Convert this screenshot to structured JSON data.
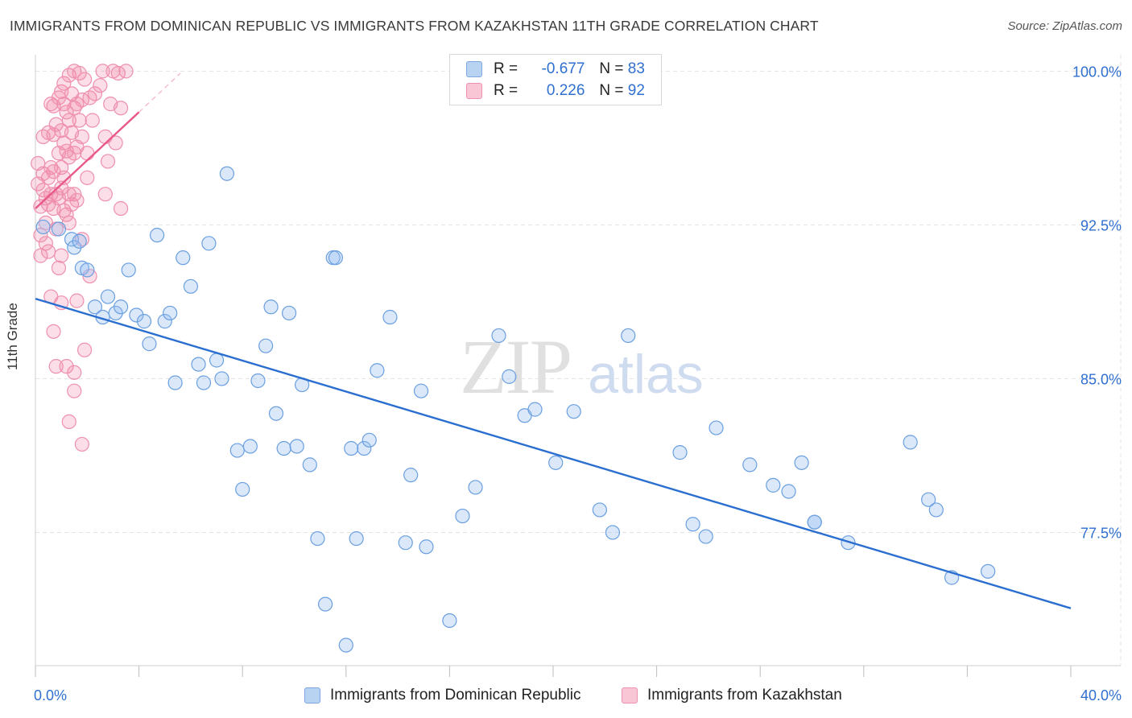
{
  "chart_data": {
    "type": "scatter",
    "title": "IMMIGRANTS FROM DOMINICAN REPUBLIC VS IMMIGRANTS FROM KAZAKHSTAN 11TH GRADE CORRELATION CHART",
    "source": "Source: ZipAtlas.com",
    "ylabel": "11th Grade",
    "xlim": [
      0,
      40
    ],
    "ylim": [
      71.0,
      100.8
    ],
    "x_tick_labels": [
      "0.0%",
      "40.0%"
    ],
    "y_ticks": [
      100.0,
      92.5,
      85.0,
      77.5
    ],
    "y_tick_labels": [
      "100.0%",
      "92.5%",
      "85.0%",
      "77.5%"
    ],
    "grid": true,
    "watermark": {
      "zip": "ZIP",
      "atlas": "atlas"
    },
    "legend_position": "top-center",
    "colors": {
      "blue": "#6a9fe0",
      "blue_line": "#2a6fd0",
      "pink": "#f28aaa",
      "pink_line": "#e8598a",
      "axis_text": "#2f6fd0"
    },
    "stats": [
      {
        "r_label": "R =",
        "r_value": "-0.677",
        "n_label": "N =",
        "n_value": "83"
      },
      {
        "r_label": "R =",
        "r_value": "0.226",
        "n_label": "N =",
        "n_value": "92"
      }
    ],
    "series": [
      {
        "name": "Immigrants from Dominican Republic",
        "color": "#6a9fe0",
        "trend": {
          "x": [
            0.0,
            40.0
          ],
          "y": [
            88.9,
            73.8
          ]
        },
        "points": [
          [
            0.3,
            92.4
          ],
          [
            0.9,
            92.3
          ],
          [
            1.4,
            91.8
          ],
          [
            1.5,
            91.4
          ],
          [
            1.7,
            91.7
          ],
          [
            1.8,
            90.4
          ],
          [
            2.0,
            90.3
          ],
          [
            2.3,
            88.5
          ],
          [
            2.6,
            88.0
          ],
          [
            2.8,
            89.0
          ],
          [
            3.1,
            88.2
          ],
          [
            3.3,
            88.5
          ],
          [
            3.9,
            88.1
          ],
          [
            4.2,
            87.8
          ],
          [
            4.4,
            86.7
          ],
          [
            3.6,
            90.3
          ],
          [
            4.7,
            92.0
          ],
          [
            5.0,
            87.8
          ],
          [
            5.2,
            88.2
          ],
          [
            5.4,
            84.8
          ],
          [
            5.7,
            90.9
          ],
          [
            6.0,
            89.5
          ],
          [
            6.3,
            85.7
          ],
          [
            6.5,
            84.8
          ],
          [
            6.7,
            91.6
          ],
          [
            7.0,
            85.9
          ],
          [
            7.4,
            95.0
          ],
          [
            7.2,
            85.0
          ],
          [
            7.8,
            81.5
          ],
          [
            8.0,
            79.6
          ],
          [
            8.3,
            81.7
          ],
          [
            8.6,
            84.9
          ],
          [
            8.9,
            86.6
          ],
          [
            9.1,
            88.5
          ],
          [
            9.3,
            83.3
          ],
          [
            9.6,
            81.6
          ],
          [
            9.8,
            88.2
          ],
          [
            10.1,
            81.7
          ],
          [
            10.3,
            84.7
          ],
          [
            10.6,
            80.8
          ],
          [
            10.9,
            77.2
          ],
          [
            11.2,
            74.0
          ],
          [
            11.5,
            90.9
          ],
          [
            11.6,
            90.9
          ],
          [
            12.0,
            72.0
          ],
          [
            12.2,
            81.6
          ],
          [
            12.4,
            77.2
          ],
          [
            12.7,
            81.6
          ],
          [
            12.9,
            82.0
          ],
          [
            13.2,
            85.4
          ],
          [
            13.7,
            88.0
          ],
          [
            14.3,
            77.0
          ],
          [
            14.5,
            80.3
          ],
          [
            14.9,
            84.4
          ],
          [
            15.1,
            76.8
          ],
          [
            16.0,
            73.2
          ],
          [
            16.5,
            78.3
          ],
          [
            17.0,
            79.7
          ],
          [
            17.9,
            87.1
          ],
          [
            18.3,
            85.1
          ],
          [
            18.9,
            83.2
          ],
          [
            19.3,
            83.5
          ],
          [
            20.1,
            80.9
          ],
          [
            20.8,
            83.4
          ],
          [
            21.8,
            78.6
          ],
          [
            22.3,
            77.5
          ],
          [
            22.9,
            87.1
          ],
          [
            24.9,
            81.4
          ],
          [
            25.4,
            77.9
          ],
          [
            25.9,
            77.3
          ],
          [
            26.3,
            82.6
          ],
          [
            27.6,
            80.8
          ],
          [
            28.5,
            79.8
          ],
          [
            29.1,
            79.5
          ],
          [
            29.6,
            80.9
          ],
          [
            30.1,
            78.0
          ],
          [
            31.4,
            77.0
          ],
          [
            33.8,
            81.9
          ],
          [
            34.5,
            79.1
          ],
          [
            34.8,
            78.6
          ],
          [
            35.4,
            75.3
          ],
          [
            36.8,
            75.6
          ],
          [
            30.1,
            78.0
          ]
        ]
      },
      {
        "name": "Immigrants from Kazakhstan",
        "color": "#f28aaa",
        "trend": {
          "x": [
            0.0,
            4.0
          ],
          "y": [
            93.3,
            98.0
          ]
        },
        "trend_ext": {
          "x": [
            4.0,
            5.6
          ],
          "y": [
            98.0,
            99.9
          ]
        },
        "points": [
          [
            0.1,
            95.5
          ],
          [
            0.1,
            94.5
          ],
          [
            0.2,
            93.4
          ],
          [
            0.2,
            92.0
          ],
          [
            0.2,
            91.0
          ],
          [
            0.3,
            96.8
          ],
          [
            0.3,
            95.0
          ],
          [
            0.3,
            94.2
          ],
          [
            0.4,
            93.8
          ],
          [
            0.4,
            92.6
          ],
          [
            0.4,
            91.6
          ],
          [
            0.5,
            97.0
          ],
          [
            0.5,
            94.8
          ],
          [
            0.5,
            93.5
          ],
          [
            0.5,
            91.2
          ],
          [
            0.6,
            98.4
          ],
          [
            0.6,
            95.3
          ],
          [
            0.6,
            94.0
          ],
          [
            0.6,
            89.0
          ],
          [
            0.7,
            98.3
          ],
          [
            0.7,
            96.9
          ],
          [
            0.7,
            95.1
          ],
          [
            0.7,
            93.3
          ],
          [
            0.7,
            87.3
          ],
          [
            0.8,
            97.4
          ],
          [
            0.8,
            94.0
          ],
          [
            0.8,
            92.3
          ],
          [
            0.8,
            85.6
          ],
          [
            0.9,
            98.7
          ],
          [
            0.9,
            96.0
          ],
          [
            0.9,
            93.8
          ],
          [
            0.9,
            90.4
          ],
          [
            1.0,
            99.0
          ],
          [
            1.0,
            97.1
          ],
          [
            1.0,
            95.3
          ],
          [
            1.0,
            94.3
          ],
          [
            1.0,
            91.0
          ],
          [
            1.0,
            88.7
          ],
          [
            1.1,
            99.4
          ],
          [
            1.1,
            98.4
          ],
          [
            1.1,
            96.5
          ],
          [
            1.1,
            94.8
          ],
          [
            1.1,
            93.2
          ],
          [
            1.2,
            98.0
          ],
          [
            1.2,
            96.1
          ],
          [
            1.2,
            93.0
          ],
          [
            1.2,
            85.6
          ],
          [
            1.3,
            99.8
          ],
          [
            1.3,
            97.6
          ],
          [
            1.3,
            95.8
          ],
          [
            1.3,
            94.0
          ],
          [
            1.3,
            92.6
          ],
          [
            1.3,
            82.9
          ],
          [
            1.4,
            98.9
          ],
          [
            1.4,
            97.0
          ],
          [
            1.4,
            93.5
          ],
          [
            1.5,
            100.0
          ],
          [
            1.5,
            98.2
          ],
          [
            1.5,
            96.0
          ],
          [
            1.5,
            94.0
          ],
          [
            1.5,
            85.3
          ],
          [
            1.5,
            84.4
          ],
          [
            1.6,
            98.4
          ],
          [
            1.6,
            96.3
          ],
          [
            1.6,
            93.7
          ],
          [
            1.6,
            88.8
          ],
          [
            1.7,
            99.9
          ],
          [
            1.7,
            97.6
          ],
          [
            1.8,
            98.6
          ],
          [
            1.8,
            96.8
          ],
          [
            1.8,
            91.8
          ],
          [
            1.8,
            81.8
          ],
          [
            1.9,
            99.6
          ],
          [
            1.9,
            86.4
          ],
          [
            2.0,
            94.8
          ],
          [
            2.0,
            96.0
          ],
          [
            2.1,
            98.7
          ],
          [
            2.1,
            90.0
          ],
          [
            2.2,
            97.6
          ],
          [
            2.3,
            98.9
          ],
          [
            2.5,
            99.3
          ],
          [
            2.6,
            100.0
          ],
          [
            2.7,
            94.0
          ],
          [
            2.7,
            96.8
          ],
          [
            2.8,
            95.6
          ],
          [
            2.9,
            98.4
          ],
          [
            3.0,
            100.0
          ],
          [
            3.1,
            96.5
          ],
          [
            3.2,
            99.9
          ],
          [
            3.5,
            100.0
          ],
          [
            3.3,
            98.2
          ],
          [
            3.3,
            93.3
          ]
        ]
      }
    ]
  }
}
